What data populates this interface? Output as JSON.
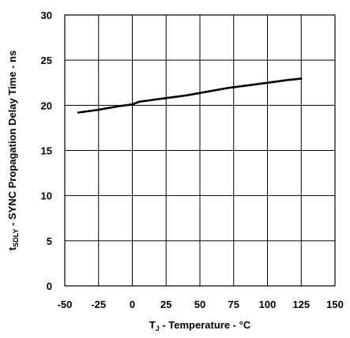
{
  "chart_data": {
    "type": "line",
    "xlabel": {
      "main": "T",
      "sub": "J",
      "rest": " - Temperature - °C"
    },
    "ylabel": {
      "main": "t",
      "sub": "SDLY",
      "rest": " - SYNC Propagation Delay Time - ns"
    },
    "xlim": [
      -50,
      150
    ],
    "ylim": [
      0,
      30
    ],
    "xticks": [
      -50,
      -25,
      0,
      25,
      50,
      75,
      100,
      125,
      150
    ],
    "yticks": [
      0,
      5,
      10,
      15,
      20,
      25,
      30
    ],
    "xtick_labels": [
      "-50",
      "-25",
      "0",
      "25",
      "50",
      "75",
      "100",
      "125",
      "150"
    ],
    "ytick_labels": [
      "0",
      "5",
      "10",
      "15",
      "20",
      "25",
      "30"
    ],
    "grid": true,
    "series": [
      {
        "x": [
          -40,
          -25,
          -10,
          0,
          5,
          15,
          25,
          40,
          55,
          70,
          85,
          100,
          115,
          125
        ],
        "y": [
          19.2,
          19.5,
          19.9,
          20.1,
          20.4,
          20.6,
          20.8,
          21.1,
          21.5,
          21.9,
          22.2,
          22.5,
          22.8,
          22.95
        ]
      }
    ]
  }
}
